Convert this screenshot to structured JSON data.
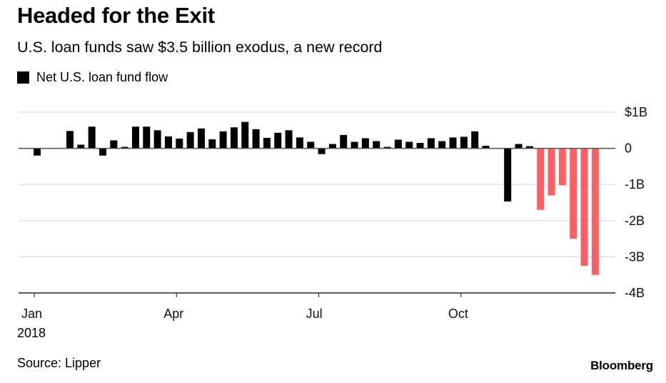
{
  "header": {
    "title": "Headed for the Exit",
    "subtitle": "U.S. loan funds saw $3.5 billion exodus, a new record"
  },
  "legend": {
    "label": "Net U.S. loan fund flow",
    "color": "#000000"
  },
  "footer": {
    "source": "Source: Lipper",
    "brand": "Bloomberg"
  },
  "chart_data": {
    "type": "bar",
    "title": "Headed for the Exit",
    "subtitle": "U.S. loan funds saw $3.5 billion exodus, a new record",
    "xlabel": "",
    "ylabel": "",
    "legend": [
      "Net U.S. loan fund flow"
    ],
    "legend_position": "top-left",
    "grid": true,
    "ylim": [
      -4,
      1
    ],
    "y_unit": "billions USD",
    "y_ticks": [
      {
        "value": 1,
        "label": "$1B"
      },
      {
        "value": 0,
        "label": "0"
      },
      {
        "value": -1,
        "label": "-1B"
      },
      {
        "value": -2,
        "label": "-2B"
      },
      {
        "value": -3,
        "label": "-3B"
      },
      {
        "value": -4,
        "label": "-4B"
      }
    ],
    "x_ticks": [
      {
        "week_index": 0,
        "label": "Jan"
      },
      {
        "week_index": 13,
        "label": "Apr"
      },
      {
        "week_index": 26,
        "label": "Jul"
      },
      {
        "week_index": 39,
        "label": "Oct"
      }
    ],
    "x_year_label": "2018",
    "colors": {
      "normal": "#000000",
      "highlight": "#ff5f63"
    },
    "highlight_from_index": 46,
    "series": [
      {
        "name": "Net U.S. loan fund flow",
        "values": [
          -0.2,
          0.01,
          0.01,
          0.48,
          0.1,
          0.6,
          -0.2,
          0.22,
          0.04,
          0.6,
          0.6,
          0.5,
          0.33,
          0.27,
          0.45,
          0.55,
          0.25,
          0.47,
          0.58,
          0.73,
          0.53,
          0.29,
          0.43,
          0.5,
          0.3,
          0.18,
          -0.16,
          0.12,
          0.37,
          0.18,
          0.28,
          0.2,
          0.04,
          0.24,
          0.18,
          0.15,
          0.28,
          0.2,
          0.3,
          0.32,
          0.47,
          0.07,
          0.01,
          -1.47,
          0.12,
          0.06,
          -1.7,
          -1.3,
          -1.02,
          -2.5,
          -3.25,
          -3.5
        ]
      }
    ]
  }
}
